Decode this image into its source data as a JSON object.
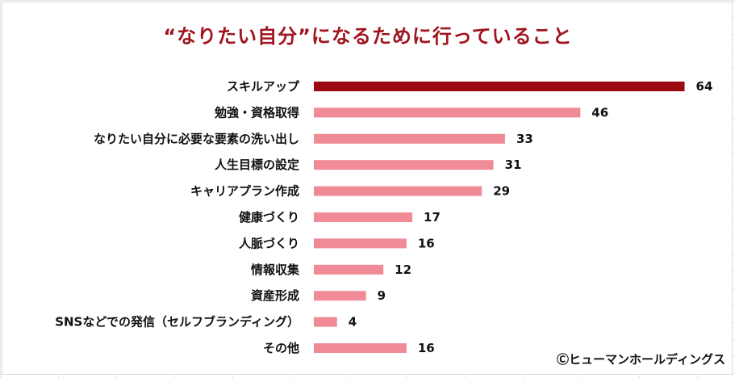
{
  "chart_data": {
    "type": "bar",
    "orientation": "horizontal",
    "title": "“なりたい自分”になるために行っていること",
    "categories": [
      "スキルアップ",
      "勉強・資格取得",
      "なりたい自分に必要な要素の洗い出し",
      "人生目標の設定",
      "キャリアプラン作成",
      "健康づくり",
      "人脈づくり",
      "情報収集",
      "資産形成",
      "SNSなどでの発信（セルフブランディング）",
      "その他"
    ],
    "values": [
      64,
      46,
      33,
      31,
      29,
      17,
      16,
      12,
      9,
      4,
      16
    ],
    "value_labels": [
      "64",
      "46",
      "33",
      "31",
      "29",
      "17",
      "16",
      "12",
      "9",
      "4",
      "16"
    ],
    "highlight_index": 0,
    "colors": {
      "highlight": "#9b0a12",
      "bar": "#f08a96",
      "title": "#a0141e"
    },
    "grid": false,
    "legend": "none"
  },
  "credit": "Ⓒヒューマンホールディングス"
}
